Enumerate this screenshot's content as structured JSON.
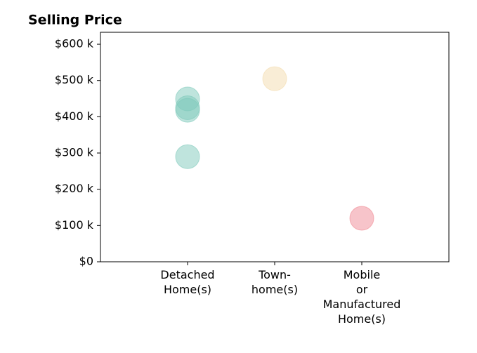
{
  "chart_data": {
    "type": "strip",
    "title": "Selling Price",
    "categories": [
      "Detached\nHome(s)",
      "Town-\nhome(s)",
      "Mobile\nor\nManufactured\nHome(s)"
    ],
    "values": [
      [
        449000,
        425000,
        418000,
        290000
      ],
      [
        505000
      ],
      [
        120000
      ]
    ],
    "colors": [
      "#7fc9bb",
      "#f3dcae",
      "#f08a95"
    ],
    "xlim": [
      -1,
      3
    ],
    "ylim": [
      0,
      633000
    ],
    "yticks": [
      {
        "value": 0,
        "label": "$0"
      },
      {
        "value": 100000,
        "label": "$100 k"
      },
      {
        "value": 200000,
        "label": "$200 k"
      },
      {
        "value": 300000,
        "label": "$300 k"
      },
      {
        "value": 400000,
        "label": "$400 k"
      },
      {
        "value": 500000,
        "label": "$500 k"
      },
      {
        "value": 600000,
        "label": "$600 k"
      }
    ]
  }
}
